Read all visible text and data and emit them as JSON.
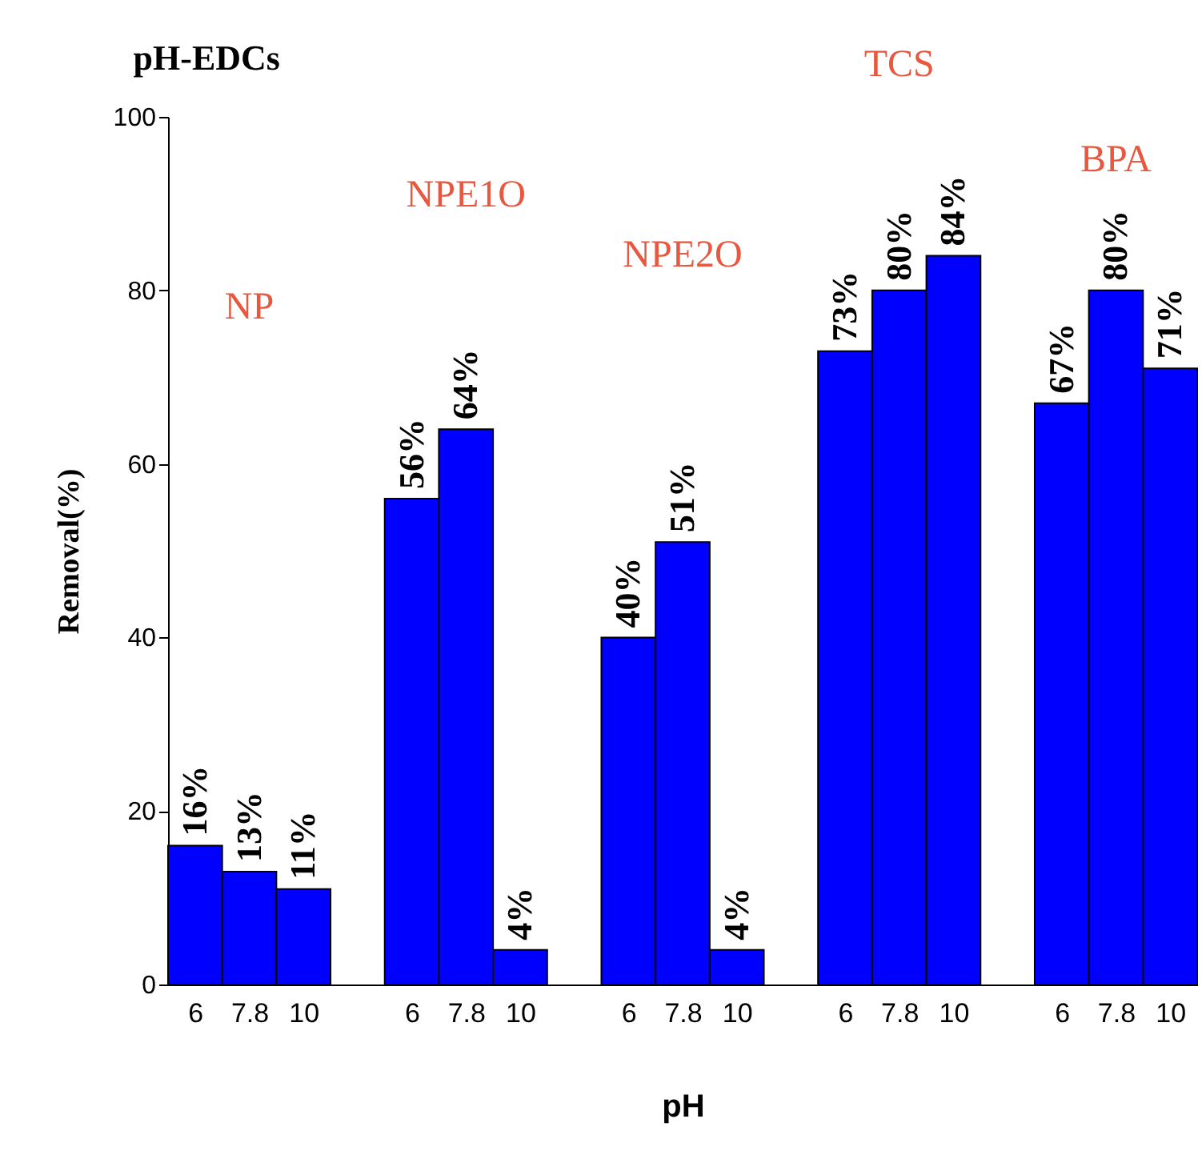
{
  "chart_data": {
    "type": "bar",
    "title": "pH-EDCs",
    "xlabel": "pH",
    "ylabel": "Removal(%)",
    "categories": [
      "6",
      "7.8",
      "10",
      "6",
      "7.8",
      "10",
      "6",
      "7.8",
      "10",
      "6",
      "7.8",
      "10",
      "6",
      "7.8",
      "10"
    ],
    "values": [
      16,
      13,
      11,
      56,
      64,
      4,
      40,
      51,
      4,
      73,
      80,
      84,
      67,
      80,
      71
    ],
    "value_labels": [
      "16%",
      "13%",
      "11%",
      "56%",
      "64%",
      "4%",
      "40%",
      "51%",
      "4%",
      "73%",
      "80%",
      "84%",
      "67%",
      "80%",
      "71%"
    ],
    "color": "#0000ff",
    "annotations": [
      "NP",
      "NPE1O",
      "NPE2O",
      "TCS",
      "BPA"
    ],
    "ylim": [
      0,
      100
    ],
    "yticks": [
      0,
      20,
      40,
      60,
      80,
      100
    ],
    "grid": false
  }
}
